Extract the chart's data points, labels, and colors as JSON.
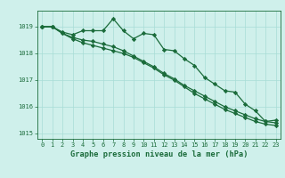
{
  "title": "Graphe pression niveau de la mer (hPa)",
  "background_color": "#cff0eb",
  "grid_color": "#a8ddd6",
  "line_color": "#1a6b3a",
  "x_values": [
    0,
    1,
    2,
    3,
    4,
    5,
    6,
    7,
    8,
    9,
    10,
    11,
    12,
    13,
    14,
    15,
    16,
    17,
    18,
    19,
    20,
    21,
    22,
    23
  ],
  "series1": [
    1019.0,
    1019.0,
    1018.8,
    1018.7,
    1018.85,
    1018.85,
    1018.85,
    1019.3,
    1018.85,
    1018.55,
    1018.75,
    1018.7,
    1018.15,
    1018.1,
    1017.8,
    1017.55,
    1017.1,
    1016.85,
    1016.6,
    1016.55,
    1016.1,
    1015.85,
    1015.45,
    1015.5
  ],
  "series2": [
    1019.0,
    1019.0,
    1018.75,
    1018.55,
    1018.4,
    1018.3,
    1018.2,
    1018.1,
    1018.0,
    1017.85,
    1017.65,
    1017.45,
    1017.2,
    1017.0,
    1016.75,
    1016.5,
    1016.3,
    1016.1,
    1015.9,
    1015.75,
    1015.6,
    1015.45,
    1015.35,
    1015.3
  ],
  "series3": [
    1019.0,
    1019.0,
    1018.75,
    1018.6,
    1018.5,
    1018.45,
    1018.35,
    1018.25,
    1018.1,
    1017.9,
    1017.7,
    1017.5,
    1017.25,
    1017.05,
    1016.8,
    1016.6,
    1016.4,
    1016.2,
    1016.0,
    1015.85,
    1015.7,
    1015.55,
    1015.45,
    1015.4
  ],
  "ylim": [
    1014.8,
    1019.6
  ],
  "yticks": [
    1015,
    1016,
    1017,
    1018,
    1019
  ],
  "xticks": [
    0,
    1,
    2,
    3,
    4,
    5,
    6,
    7,
    8,
    9,
    10,
    11,
    12,
    13,
    14,
    15,
    16,
    17,
    18,
    19,
    20,
    21,
    22,
    23
  ],
  "marker": "D",
  "markersize": 2.2,
  "linewidth": 0.9,
  "tick_fontsize": 5.0,
  "xlabel_fontsize": 6.2
}
